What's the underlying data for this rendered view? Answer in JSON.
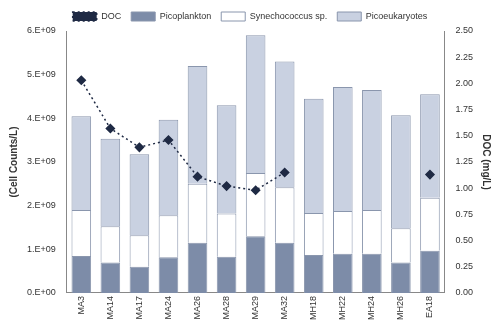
{
  "chart_data": {
    "type": "bar",
    "stacked": true,
    "grid": false,
    "legend": "top",
    "categories": [
      "MA3",
      "MA14",
      "MA17",
      "MA24",
      "MA26",
      "MA28",
      "MA29",
      "MA32",
      "MH18",
      "MH22",
      "MH24",
      "MH26",
      "EA18"
    ],
    "y_label": "(Cell Counts/L)",
    "y2_label": "DOC (mg/L)",
    "ylim": [
      0,
      6000000000.0
    ],
    "yticks": [
      {
        "value": 0,
        "label": "0.E+00"
      },
      {
        "value": 1000000000.0,
        "label": "1.E+09"
      },
      {
        "value": 2000000000.0,
        "label": "2.E+09"
      },
      {
        "value": 3000000000.0,
        "label": "3.E+09"
      },
      {
        "value": 4000000000.0,
        "label": "4.E+09"
      },
      {
        "value": 5000000000.0,
        "label": "5.E+09"
      },
      {
        "value": 6000000000.0,
        "label": "6.E+09"
      }
    ],
    "y2lim": [
      0,
      2.5
    ],
    "y2ticks": [
      {
        "value": 0,
        "label": "0.00"
      },
      {
        "value": 0.25,
        "label": "0.25"
      },
      {
        "value": 0.5,
        "label": "0.50"
      },
      {
        "value": 0.75,
        "label": "0.75"
      },
      {
        "value": 1,
        "label": "1.00"
      },
      {
        "value": 1.25,
        "label": "1.25"
      },
      {
        "value": 1.5,
        "label": "1.50"
      },
      {
        "value": 1.75,
        "label": "1.75"
      },
      {
        "value": 2,
        "label": "2.00"
      },
      {
        "value": 2.25,
        "label": "2.25"
      },
      {
        "value": 2.5,
        "label": "2.50"
      }
    ],
    "series": [
      {
        "name": "Picoplankton",
        "type": "bar",
        "color": "#7d8ca8",
        "values": [
          850000000.0,
          700000000.0,
          600000000.0,
          820000000.0,
          1150000000.0,
          830000000.0,
          1300000000.0,
          1150000000.0,
          870000000.0,
          900000000.0,
          900000000.0,
          700000000.0,
          970000000.0
        ]
      },
      {
        "name": "Synechococcus sp.",
        "type": "bar",
        "color": "#ffffff",
        "values": [
          1050000000.0,
          830000000.0,
          720000000.0,
          960000000.0,
          1350000000.0,
          990000000.0,
          1450000000.0,
          1270000000.0,
          960000000.0,
          980000000.0,
          1000000000.0,
          780000000.0,
          1210000000.0
        ]
      },
      {
        "name": "Picoeukaryotes",
        "type": "bar",
        "color": "#c9d1e1",
        "values": [
          2150000000.0,
          2000000000.0,
          1860000000.0,
          2190000000.0,
          2700000000.0,
          2480000000.0,
          3150000000.0,
          2880000000.0,
          2620000000.0,
          2840000000.0,
          2750000000.0,
          2590000000.0,
          2370000000.0
        ]
      },
      {
        "name": "DOC",
        "type": "line",
        "axis": "y2",
        "color": "#1f2a44",
        "marker": "diamond",
        "line_style": "dotted",
        "values": [
          2.03,
          1.57,
          1.39,
          1.46,
          1.11,
          1.02,
          0.98,
          1.15,
          null,
          null,
          null,
          null,
          1.13
        ]
      }
    ]
  }
}
